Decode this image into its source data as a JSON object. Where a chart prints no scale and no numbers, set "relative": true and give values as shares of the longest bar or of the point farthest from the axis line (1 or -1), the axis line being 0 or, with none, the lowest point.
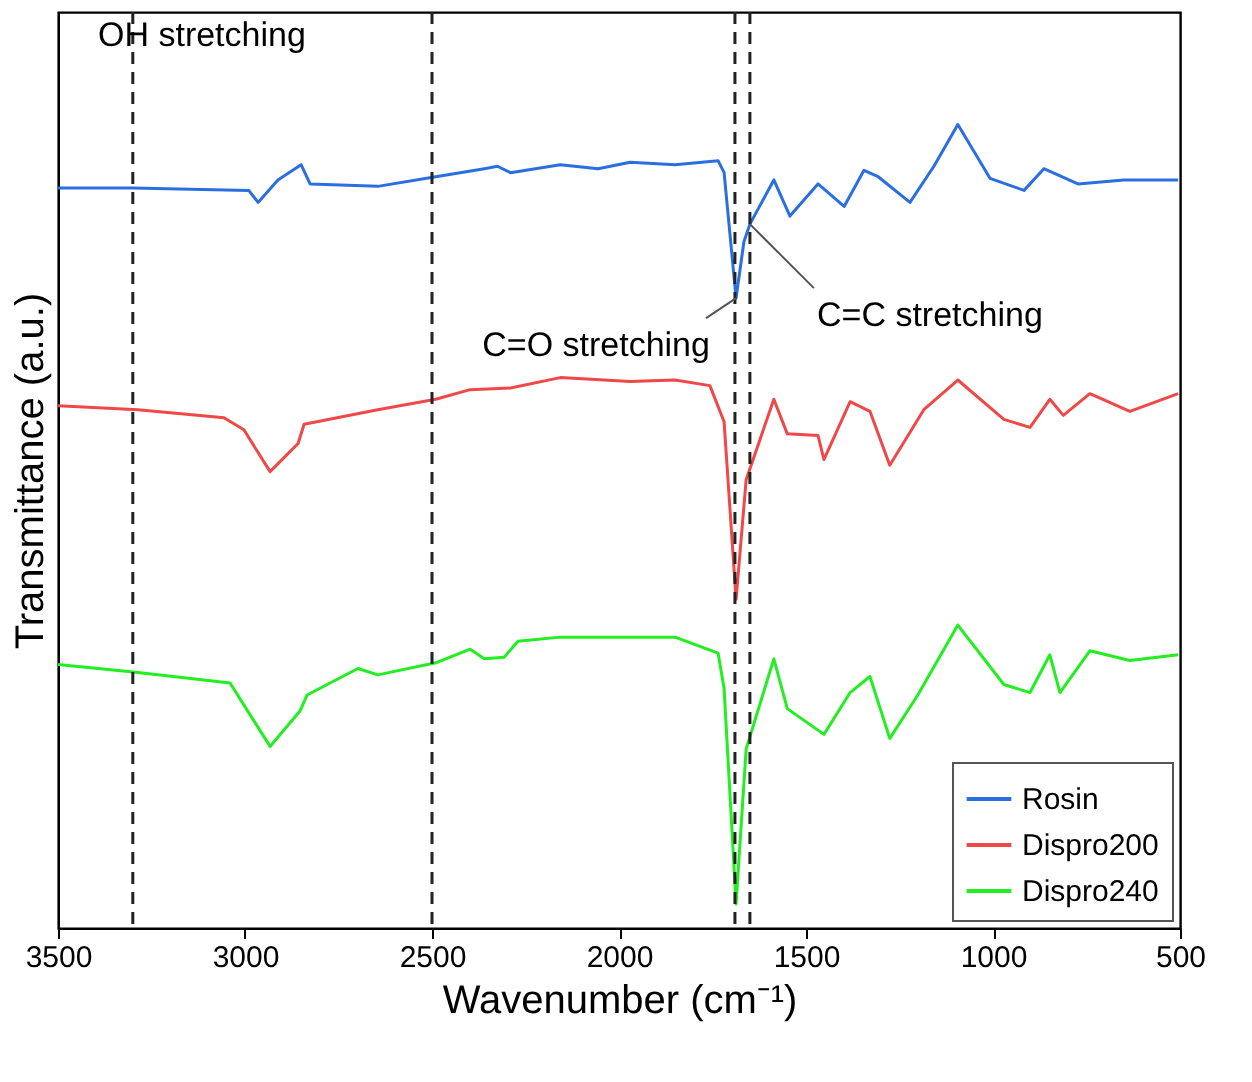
{
  "chart_data": {
    "type": "line",
    "relative": true,
    "xlabel": "Wavenumber (cm⁻¹)",
    "ylabel": "Transmittance (a.u.)",
    "xlim": [
      3500,
      500
    ],
    "xticks": [
      3500,
      3000,
      2500,
      2000,
      1500,
      1000,
      500
    ],
    "tick_labels": "x",
    "grid": false,
    "legend": "bottom right",
    "line_style": "solid",
    "marker": "none",
    "series": [
      {
        "name": "Rosin",
        "color": "#2a6fe0",
        "x": [
          3500,
          3300,
          2990,
          2965,
          2912,
          2850,
          2826,
          2645,
          2490,
          2360,
          2325,
          2290,
          2157,
          2056,
          1970,
          1850,
          1735,
          1719,
          1687,
          1666,
          1650,
          1586,
          1543,
          1468,
          1398,
          1345,
          1307,
          1222,
          1158,
          1094,
          1008,
          917,
          864,
          773,
          650,
          505
        ],
        "values": [
          0.921,
          0.921,
          0.918,
          0.903,
          0.931,
          0.95,
          0.926,
          0.923,
          0.935,
          0.945,
          0.948,
          0.94,
          0.95,
          0.945,
          0.953,
          0.95,
          0.955,
          0.94,
          0.784,
          0.854,
          0.876,
          0.931,
          0.886,
          0.926,
          0.898,
          0.943,
          0.935,
          0.903,
          0.948,
          1.0,
          0.933,
          0.918,
          0.945,
          0.926,
          0.931,
          0.931
        ]
      },
      {
        "name": "Dispro200",
        "color": "#f04848",
        "x": [
          3500,
          3286,
          3056,
          3003,
          2933,
          2858,
          2842,
          2645,
          2490,
          2398,
          2290,
          2157,
          1970,
          1850,
          1757,
          1719,
          1687,
          1660,
          1586,
          1550,
          1468,
          1452,
          1382,
          1329,
          1276,
          1185,
          1094,
          971,
          901,
          848,
          812,
          741,
          634,
          505
        ],
        "values": [
          0.65,
          0.645,
          0.635,
          0.62,
          0.568,
          0.603,
          0.627,
          0.645,
          0.658,
          0.67,
          0.672,
          0.685,
          0.68,
          0.682,
          0.675,
          0.63,
          0.409,
          0.558,
          0.658,
          0.615,
          0.613,
          0.583,
          0.655,
          0.643,
          0.576,
          0.645,
          0.682,
          0.633,
          0.623,
          0.658,
          0.638,
          0.665,
          0.643,
          0.665
        ]
      },
      {
        "name": "Dispro240",
        "color": "#22ee22",
        "x": [
          3500,
          3286,
          3040,
          2933,
          2853,
          2834,
          2698,
          2645,
          2490,
          2398,
          2360,
          2307,
          2270,
          2157,
          1970,
          1850,
          1735,
          1719,
          1687,
          1660,
          1586,
          1550,
          1452,
          1382,
          1329,
          1276,
          1201,
          1094,
          971,
          901,
          848,
          821,
          741,
          634,
          505
        ],
        "values": [
          0.328,
          0.318,
          0.305,
          0.226,
          0.27,
          0.29,
          0.323,
          0.315,
          0.33,
          0.347,
          0.335,
          0.337,
          0.357,
          0.362,
          0.362,
          0.362,
          0.342,
          0.298,
          0.03,
          0.223,
          0.335,
          0.273,
          0.241,
          0.293,
          0.313,
          0.236,
          0.29,
          0.377,
          0.303,
          0.293,
          0.34,
          0.293,
          0.345,
          0.333,
          0.34
        ]
      }
    ],
    "ref_lines": [
      {
        "axis": "x",
        "value": 3300,
        "color": "#222222",
        "line_style": "dashed"
      },
      {
        "axis": "x",
        "value": 2500,
        "color": "#222222",
        "line_style": "dashed"
      },
      {
        "axis": "x",
        "value": 1690,
        "color": "#222222",
        "line_style": "dashed"
      },
      {
        "axis": "x",
        "value": 1650,
        "color": "#222222",
        "line_style": "dashed"
      }
    ],
    "annotations": [
      "OH stretching",
      {
        "text": "C=O stretching",
        "x": 1687,
        "y": 0.784
      },
      {
        "text": "C=C stretching",
        "x": 1650,
        "y": 0.876
      }
    ]
  }
}
